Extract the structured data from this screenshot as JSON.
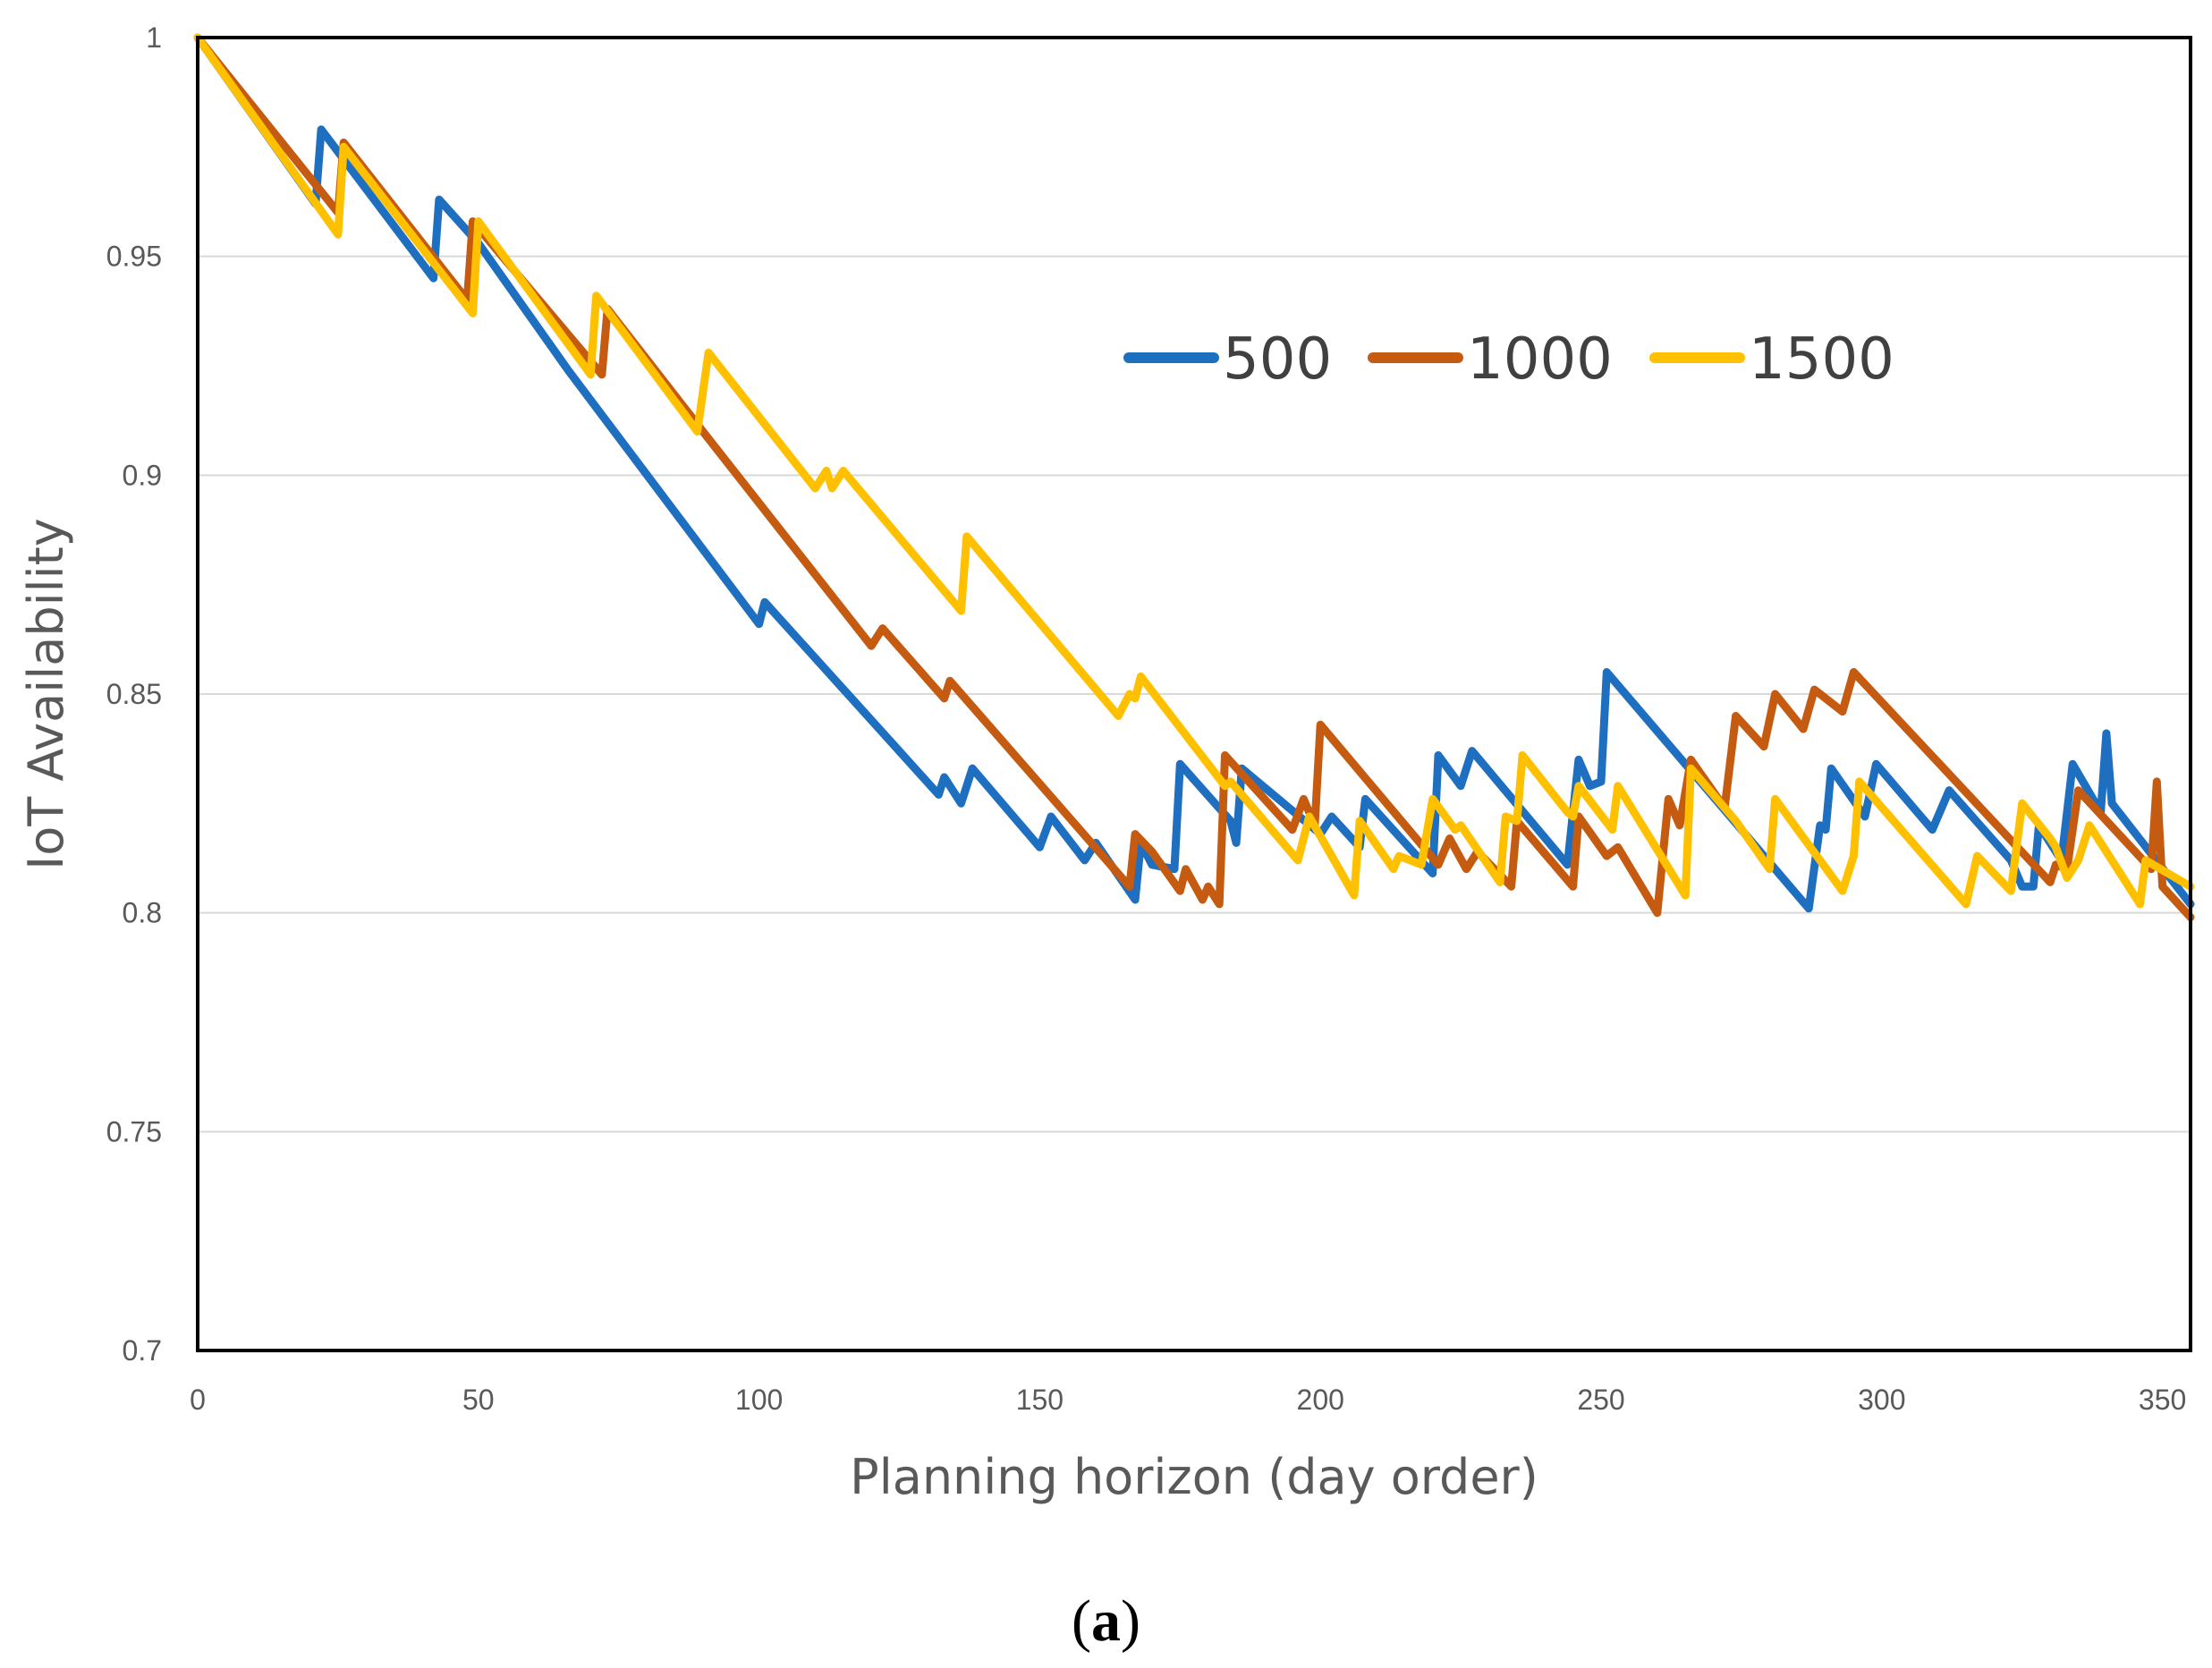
{
  "chart_data": {
    "type": "line",
    "title": "",
    "xlabel": "Planning horizon (day order)",
    "ylabel": "IoT Availability",
    "xlim": [
      0,
      355
    ],
    "ylim": [
      0.7,
      1
    ],
    "xticks": [
      0,
      50,
      100,
      150,
      200,
      250,
      300,
      350
    ],
    "xtick_labels": [
      "0",
      "50",
      "100",
      "150",
      "200",
      "250",
      "300",
      "350"
    ],
    "yticks": [
      0.7,
      0.75,
      0.8,
      0.85,
      0.9,
      0.95,
      1
    ],
    "ytick_labels": [
      "0.7",
      "0.75",
      "0.8",
      "0.85",
      "0.9",
      "0.95",
      "1"
    ],
    "grid": "horizontal",
    "legend_position": "top-right",
    "series": [
      {
        "name": "500",
        "color": "#1f6fc0",
        "points": [
          [
            0,
            1
          ],
          [
            21,
            0.962
          ],
          [
            22,
            0.979
          ],
          [
            42,
            0.945
          ],
          [
            43,
            0.963
          ],
          [
            50,
            0.953
          ],
          [
            66,
            0.924
          ],
          [
            100,
            0.866
          ],
          [
            101,
            0.871
          ],
          [
            132,
            0.827
          ],
          [
            133,
            0.831
          ],
          [
            136,
            0.825
          ],
          [
            138,
            0.833
          ],
          [
            150,
            0.815
          ],
          [
            152,
            0.822
          ],
          [
            158,
            0.812
          ],
          [
            160,
            0.816
          ],
          [
            167,
            0.803
          ],
          [
            168,
            0.816
          ],
          [
            170,
            0.811
          ],
          [
            174,
            0.81
          ],
          [
            175,
            0.834
          ],
          [
            184,
            0.821
          ],
          [
            185,
            0.816
          ],
          [
            186,
            0.833
          ],
          [
            200,
            0.818
          ],
          [
            202,
            0.822
          ],
          [
            207,
            0.815
          ],
          [
            208,
            0.826
          ],
          [
            220,
            0.809
          ],
          [
            221,
            0.836
          ],
          [
            225,
            0.829
          ],
          [
            227,
            0.837
          ],
          [
            244,
            0.811
          ],
          [
            246,
            0.835
          ],
          [
            248,
            0.829
          ],
          [
            250,
            0.83
          ],
          [
            251,
            0.855
          ],
          [
            287,
            0.801
          ],
          [
            289,
            0.82
          ],
          [
            290,
            0.819
          ],
          [
            291,
            0.833
          ],
          [
            297,
            0.822
          ],
          [
            299,
            0.834
          ],
          [
            307,
            0.822
          ],
          [
            309,
            0.819
          ],
          [
            312,
            0.828
          ],
          [
            323,
            0.812
          ],
          [
            325,
            0.806
          ],
          [
            327,
            0.806
          ],
          [
            328,
            0.82
          ],
          [
            332,
            0.812
          ],
          [
            334,
            0.834
          ],
          [
            339,
            0.823
          ],
          [
            340,
            0.841
          ],
          [
            341,
            0.825
          ],
          [
            355,
            0.802
          ]
        ]
      },
      {
        "name": "1000",
        "color": "#c55a11",
        "points": [
          [
            0,
            1
          ],
          [
            25,
            0.96
          ],
          [
            26,
            0.976
          ],
          [
            48,
            0.94
          ],
          [
            49,
            0.958
          ],
          [
            72,
            0.923
          ],
          [
            73,
            0.938
          ],
          [
            90,
            0.91
          ],
          [
            120,
            0.861
          ],
          [
            122,
            0.865
          ],
          [
            133,
            0.849
          ],
          [
            134,
            0.853
          ],
          [
            166,
            0.806
          ],
          [
            167,
            0.818
          ],
          [
            170,
            0.814
          ],
          [
            175,
            0.805
          ],
          [
            176,
            0.81
          ],
          [
            179,
            0.803
          ],
          [
            180,
            0.806
          ],
          [
            182,
            0.802
          ],
          [
            183,
            0.836
          ],
          [
            195,
            0.819
          ],
          [
            197,
            0.826
          ],
          [
            199,
            0.82
          ],
          [
            200,
            0.843
          ],
          [
            221,
            0.811
          ],
          [
            223,
            0.817
          ],
          [
            226,
            0.81
          ],
          [
            228,
            0.814
          ],
          [
            234,
            0.806
          ],
          [
            235,
            0.821
          ],
          [
            245,
            0.806
          ],
          [
            246,
            0.822
          ],
          [
            251,
            0.813
          ],
          [
            253,
            0.815
          ],
          [
            260,
            0.8
          ],
          [
            262,
            0.826
          ],
          [
            264,
            0.82
          ],
          [
            266,
            0.835
          ],
          [
            272,
            0.824
          ],
          [
            274,
            0.845
          ],
          [
            279,
            0.838
          ],
          [
            281,
            0.85
          ],
          [
            286,
            0.842
          ],
          [
            288,
            0.851
          ],
          [
            293,
            0.846
          ],
          [
            295,
            0.855
          ],
          [
            330,
            0.807
          ],
          [
            331,
            0.811
          ],
          [
            333,
            0.81
          ],
          [
            335,
            0.828
          ],
          [
            348,
            0.81
          ],
          [
            349,
            0.83
          ],
          [
            350,
            0.806
          ],
          [
            355,
            0.799
          ]
        ]
      },
      {
        "name": "1500",
        "color": "#ffc000",
        "points": [
          [
            0,
            1
          ],
          [
            25,
            0.955
          ],
          [
            26,
            0.975
          ],
          [
            49,
            0.937
          ],
          [
            50,
            0.958
          ],
          [
            70,
            0.923
          ],
          [
            71,
            0.941
          ],
          [
            89,
            0.91
          ],
          [
            91,
            0.928
          ],
          [
            110,
            0.897
          ],
          [
            112,
            0.901
          ],
          [
            113,
            0.897
          ],
          [
            115,
            0.901
          ],
          [
            136,
            0.869
          ],
          [
            137,
            0.886
          ],
          [
            164,
            0.845
          ],
          [
            166,
            0.85
          ],
          [
            167,
            0.849
          ],
          [
            168,
            0.854
          ],
          [
            183,
            0.829
          ],
          [
            184,
            0.83
          ],
          [
            196,
            0.812
          ],
          [
            198,
            0.822
          ],
          [
            206,
            0.804
          ],
          [
            207,
            0.821
          ],
          [
            213,
            0.81
          ],
          [
            214,
            0.813
          ],
          [
            218,
            0.811
          ],
          [
            220,
            0.826
          ],
          [
            224,
            0.819
          ],
          [
            225,
            0.82
          ],
          [
            232,
            0.807
          ],
          [
            233,
            0.822
          ],
          [
            235,
            0.821
          ],
          [
            236,
            0.836
          ],
          [
            244,
            0.823
          ],
          [
            245,
            0.822
          ],
          [
            246,
            0.829
          ],
          [
            252,
            0.819
          ],
          [
            253,
            0.829
          ],
          [
            265,
            0.804
          ],
          [
            266,
            0.833
          ],
          [
            274,
            0.821
          ],
          [
            280,
            0.81
          ],
          [
            281,
            0.826
          ],
          [
            293,
            0.805
          ],
          [
            295,
            0.813
          ],
          [
            296,
            0.83
          ],
          [
            315,
            0.802
          ],
          [
            317,
            0.813
          ],
          [
            323,
            0.805
          ],
          [
            325,
            0.825
          ],
          [
            330,
            0.817
          ],
          [
            331,
            0.815
          ],
          [
            333,
            0.808
          ],
          [
            335,
            0.812
          ],
          [
            337,
            0.82
          ],
          [
            346,
            0.802
          ],
          [
            347,
            0.812
          ],
          [
            355,
            0.806
          ]
        ]
      }
    ]
  },
  "caption": {
    "open": "(",
    "label": "a",
    "close": ")"
  }
}
